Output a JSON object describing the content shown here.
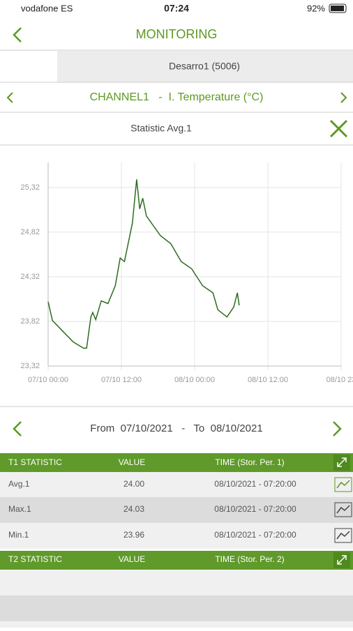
{
  "status_bar": {
    "carrier": "vodafone ES",
    "time": "07:24",
    "battery": "92%"
  },
  "header": {
    "title": "MONITORING"
  },
  "device_tab": "Desarro1 (5006)",
  "channel": "CHANNEL1   -  I. Temperature (°C)",
  "statistic": "Statistic Avg.1",
  "chart_data": {
    "type": "line",
    "color": "#2e6b1f",
    "x": [
      0,
      0.7,
      2.4,
      4.1,
      5.8,
      6.3,
      7.0,
      7.3,
      7.8,
      8.7,
      9.8,
      11.0,
      11.8,
      12.5,
      13.8,
      14.5,
      15.0,
      15.5,
      16.1,
      18.4,
      20.1,
      21.8,
      23.5,
      25.3,
      27.0,
      27.8,
      29.3,
      30.4,
      31.0,
      31.3
    ],
    "values": [
      24.04,
      23.83,
      23.71,
      23.59,
      23.52,
      23.52,
      23.87,
      23.92,
      23.84,
      24.05,
      24.02,
      24.22,
      24.53,
      24.49,
      24.92,
      25.41,
      25.08,
      25.2,
      25.0,
      24.78,
      24.69,
      24.49,
      24.41,
      24.22,
      24.14,
      23.95,
      23.87,
      23.98,
      24.14,
      24.0
    ],
    "xlim": [
      0,
      48
    ],
    "ylim": [
      23.32,
      25.6
    ],
    "xticks": [
      {
        "value": 0,
        "label": "07/10 00:00"
      },
      {
        "value": 12,
        "label": "07/10 12:00"
      },
      {
        "value": 24,
        "label": "08/10 00:00"
      },
      {
        "value": 36,
        "label": "08/10 12:00"
      },
      {
        "value": 48,
        "label": "08/10 23"
      }
    ],
    "yticks": [
      {
        "value": 23.32,
        "label": "23,32"
      },
      {
        "value": 23.82,
        "label": "23,82"
      },
      {
        "value": 24.32,
        "label": "24,32"
      },
      {
        "value": 24.82,
        "label": "24,82"
      },
      {
        "value": 25.32,
        "label": "25,32"
      }
    ],
    "grid": true
  },
  "date_range": "From  07/10/2021   -   To  08/10/2021",
  "table1": {
    "columns": [
      "T1 STATISTIC",
      "VALUE",
      "TIME (Stor. Per. 1)"
    ],
    "rows": [
      [
        "Avg.1",
        "24.00",
        "08/10/2021 - 07:20:00"
      ],
      [
        "Max.1",
        "24.03",
        "08/10/2021 - 07:20:00"
      ],
      [
        "Min.1",
        "23.96",
        "08/10/2021 - 07:20:00"
      ]
    ]
  },
  "table2": {
    "columns": [
      "T2 STATISTIC",
      "VALUE",
      "TIME (Stor. Per. 2)"
    ]
  }
}
